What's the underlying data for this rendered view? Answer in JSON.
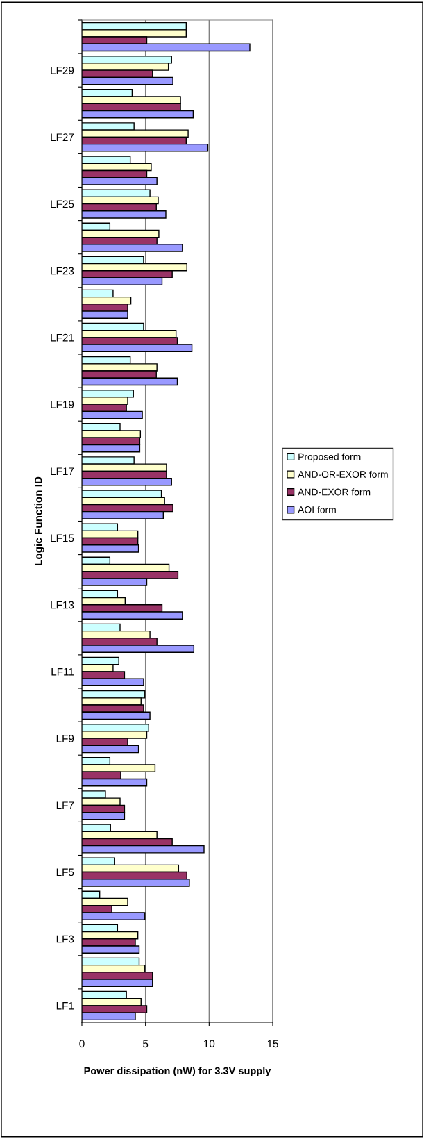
{
  "chart_data": {
    "type": "bar",
    "orientation": "horizontal",
    "xlabel": "Power dissipation (nW) for 3.3V supply",
    "ylabel": "Logic Function ID",
    "categories": [
      null,
      "LF29",
      null,
      "LF27",
      null,
      "LF25",
      null,
      "LF23",
      null,
      "LF21",
      null,
      "LF19",
      null,
      "LF17",
      null,
      "LF15",
      null,
      "LF13",
      null,
      "LF11",
      null,
      "LF9",
      null,
      "LF7",
      null,
      "LF5",
      null,
      "LF3",
      null,
      "LF1"
    ],
    "series": [
      {
        "name": "Proposed form",
        "color": "#ccffff",
        "values": [
          8.2,
          7.05,
          3.95,
          4.1,
          3.8,
          5.35,
          2.2,
          4.85,
          2.45,
          4.85,
          3.8,
          4.05,
          3.0,
          4.1,
          6.25,
          2.8,
          2.2,
          2.8,
          3.0,
          2.9,
          4.95,
          5.25,
          2.2,
          1.85,
          2.25,
          2.55,
          1.4,
          2.8,
          4.5,
          3.5
        ]
      },
      {
        "name": "AND-OR-EXOR form",
        "color": "#ffffcc",
        "values": [
          8.2,
          6.8,
          7.75,
          8.35,
          5.45,
          6.0,
          6.05,
          8.25,
          3.85,
          7.4,
          5.9,
          3.6,
          4.6,
          6.65,
          6.5,
          4.4,
          6.85,
          3.4,
          5.35,
          2.45,
          4.65,
          5.1,
          5.75,
          3.0,
          5.9,
          7.6,
          3.6,
          4.4,
          4.95,
          4.65
        ]
      },
      {
        "name": "AND-EXOR form",
        "color": "#993366",
        "values": [
          5.1,
          5.55,
          7.75,
          8.2,
          5.1,
          5.85,
          5.9,
          7.1,
          3.6,
          7.5,
          5.85,
          3.5,
          4.55,
          6.65,
          7.15,
          4.4,
          7.55,
          6.3,
          5.9,
          3.35,
          4.85,
          3.6,
          3.05,
          3.35,
          7.1,
          8.25,
          2.35,
          4.2,
          5.55,
          5.1
        ]
      },
      {
        "name": "AOI form",
        "color": "#9999ff",
        "values": [
          13.2,
          7.15,
          8.75,
          9.9,
          5.9,
          6.6,
          7.9,
          6.3,
          3.6,
          8.65,
          7.5,
          4.75,
          4.55,
          7.05,
          6.4,
          4.45,
          5.1,
          7.9,
          8.8,
          4.85,
          5.35,
          4.45,
          5.1,
          3.35,
          9.6,
          8.45,
          4.95,
          4.5,
          5.55,
          4.2
        ]
      }
    ],
    "xlim": [
      0,
      15
    ],
    "xticks": [
      0,
      5,
      10,
      15
    ],
    "grid": "x",
    "legend": "right"
  }
}
